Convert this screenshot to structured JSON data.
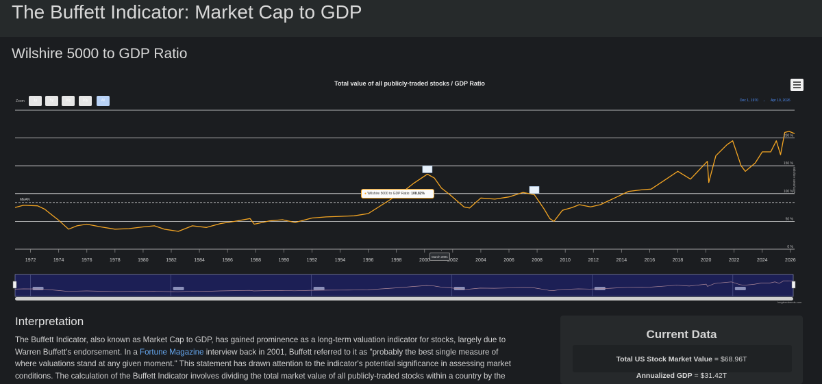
{
  "page": {
    "title": "The Buffett Indicator: Market Cap to GDP",
    "section_title": "Wilshire 5000 to GDP Ratio"
  },
  "chart_toolbar": {
    "zoom_label": "Zoom",
    "zoom_buttons": [
      "1y",
      "5y",
      "10y",
      "20y",
      "All"
    ],
    "active_zoom": "All",
    "range_from": "Dec 1, 1970",
    "range_separator": "→",
    "range_to": "Apr 10, 2026",
    "menu_icon": "hamburger-menu-icon"
  },
  "colors": {
    "series": "#f5a623",
    "grid": "#e6e6e6",
    "navigator_bg": "#1c1f55",
    "link": "#66a8f0",
    "range": "#4f8df5"
  },
  "chart_data": {
    "type": "line",
    "title": "Total value of all publicly-traded stocks / GDP Ratio",
    "ylabel": "Wilshire 5000/GDP",
    "ylim": [
      0,
      250
    ],
    "xlim": [
      1970.9,
      2026.3
    ],
    "ytick_values": [
      0,
      50,
      100,
      150,
      200
    ],
    "ytick_labels": [
      "0 %",
      "50 %",
      "100 %",
      "150 %",
      "200 %"
    ],
    "xtick_labels": [
      "1972",
      "1974",
      "1976",
      "1978",
      "1980",
      "1982",
      "1984",
      "1986",
      "1988",
      "1990",
      "1992",
      "1994",
      "1996",
      "1998",
      "2000",
      "2002",
      "2004",
      "2006",
      "2008",
      "2010",
      "2012",
      "2014",
      "2016",
      "2018",
      "2020",
      "2022",
      "2024",
      "2026"
    ],
    "mean_label": "MEAN",
    "mean_value": 84,
    "series": [
      {
        "name": "Wilshire 5000 to GDP Ratio",
        "x": [
          1970.9,
          1971.5,
          1972.5,
          1973.0,
          1973.5,
          1974.0,
          1974.7,
          1975.3,
          1976.0,
          1977.0,
          1978.0,
          1979.0,
          1980.0,
          1980.8,
          1981.5,
          1982.5,
          1983.5,
          1984.5,
          1985.5,
          1986.5,
          1987.6,
          1987.9,
          1989.0,
          1989.9,
          1990.8,
          1992.0,
          1993.0,
          1994.0,
          1995.0,
          1996.0,
          1997.0,
          1998.0,
          1998.7,
          1999.2,
          2000.2,
          2000.7,
          2001.2,
          2001.8,
          2002.8,
          2003.2,
          2004.0,
          2005.0,
          2006.0,
          2007.0,
          2007.8,
          2008.5,
          2008.9,
          2009.2,
          2009.8,
          2010.5,
          2011.0,
          2011.8,
          2012.5,
          2013.5,
          2014.5,
          2015.5,
          2016.1,
          2017.0,
          2018.0,
          2018.9,
          2019.5,
          2020.1,
          2020.2,
          2020.7,
          2021.5,
          2021.9,
          2022.5,
          2022.8,
          2023.5,
          2024.0,
          2024.6,
          2025.0,
          2025.3,
          2025.6,
          2025.9,
          2026.3
        ],
        "y": [
          75,
          79,
          78,
          72,
          62,
          52,
          36,
          42,
          45,
          40,
          36,
          37,
          40,
          42,
          36,
          32,
          42,
          39,
          46,
          50,
          55,
          45,
          51,
          53,
          48,
          56,
          58,
          59,
          60,
          64,
          80,
          96,
          108,
          118,
          135,
          128,
          110,
          98,
          76,
          74,
          92,
          90,
          94,
          102,
          98,
          72,
          55,
          50,
          70,
          75,
          80,
          76,
          80,
          92,
          104,
          107,
          108,
          123,
          140,
          126,
          142,
          158,
          120,
          168,
          188,
          195,
          150,
          140,
          155,
          175,
          175,
          195,
          170,
          210,
          212,
          208
        ]
      }
    ],
    "annotations": [
      {
        "year": 2000.2,
        "value": 135,
        "kind": "flag"
      },
      {
        "year": 2007.8,
        "value": 98,
        "kind": "flag"
      }
    ],
    "tooltip": {
      "series_name": "Wilshire 5000 to GDP Ratio:",
      "value_label": "108.82%",
      "year": 2001.2,
      "value": 108.82,
      "crosshair_label": "March 2001"
    },
    "credit": "longtermtrends.com"
  },
  "interpretation": {
    "title": "Interpretation",
    "text_before_link": "The Buffett Indicator, also known as Market Cap to GDP, has gained prominence as a long-term valuation indicator for stocks, largely due to Warren Buffett's endorsement. In a ",
    "link_text": "Fortune Magazine",
    "text_after_link": " interview back in 2001, Buffett referred to it as \"probably the best single measure of where valuations stand at any given moment.\" This statement has drawn attention to the indicator's potential significance in assessing market conditions. The calculation of the Buffett Indicator involves dividing the total market value of all publicly-traded stocks within a country by the"
  },
  "current_data": {
    "title": "Current Data",
    "market_value_label": "Total US Stock Market Value",
    "market_value": "= $68.96T",
    "gdp_label": "Annualized GDP",
    "gdp_value": "= $31.42T"
  }
}
